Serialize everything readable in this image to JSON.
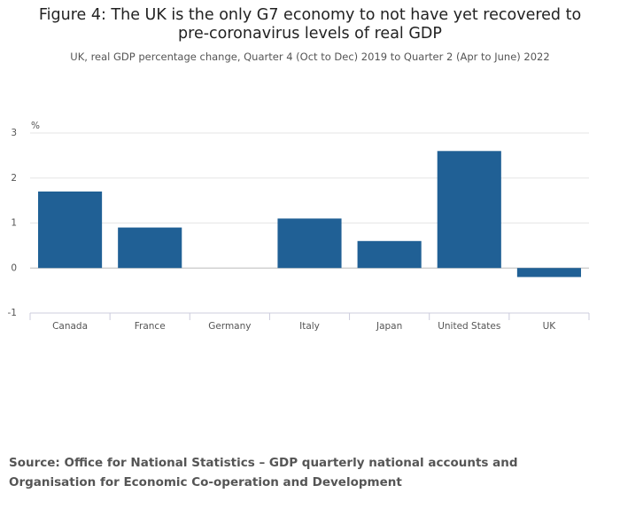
{
  "chart_data": {
    "type": "bar",
    "title": "Figure 4: The UK is the only G7 economy to not have yet recovered to pre-coronavirus levels of real GDP",
    "subtitle": "UK, real GDP percentage change, Quarter 4 (Oct to Dec) 2019 to Quarter 2 (Apr to June) 2022",
    "y_label": "%",
    "categories": [
      "Canada",
      "France",
      "Germany",
      "Italy",
      "Japan",
      "United States",
      "UK"
    ],
    "values": [
      1.7,
      0.9,
      0,
      1.1,
      0.6,
      2.6,
      -0.2
    ],
    "color": "#206095",
    "ylim": [
      -1,
      3
    ],
    "yticks": [
      -1,
      0,
      1,
      2,
      3
    ],
    "grid": true,
    "source": "Source: Office for National Statistics – GDP quarterly national accounts and Organisation for Economic Co-operation and Development"
  }
}
